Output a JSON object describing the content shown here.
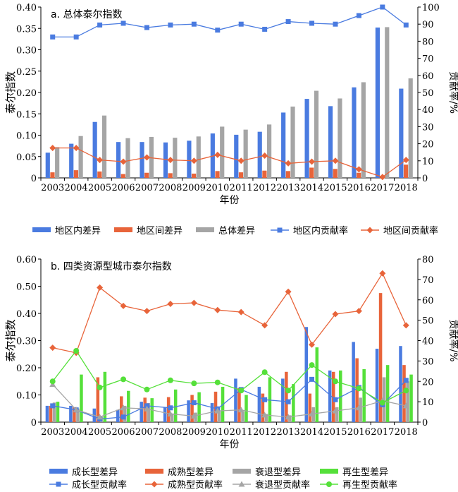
{
  "colors": {
    "within": "#4A7BE0",
    "between": "#E8643A",
    "total": "#A5A5A5",
    "mature": "#E8643A",
    "decline": "#A5A5A5",
    "regen": "#55E03A",
    "growth": "#4A7BE0"
  },
  "chart_data": [
    {
      "type": "bar",
      "title": "a. 总体泰尔指数",
      "xlabel": "年份",
      "ylabel": "泰尔指数",
      "y2label": "贡献率/%",
      "ylim": [
        0,
        0.4
      ],
      "yticks": [
        "0",
        "0.05",
        "0.10",
        "0.15",
        "0.20",
        "0.25",
        "0.30",
        "0.35",
        "0.40"
      ],
      "y2lim": [
        0,
        100
      ],
      "y2ticks": [
        "0",
        "10",
        "20",
        "30",
        "40",
        "50",
        "60",
        "70",
        "80",
        "90",
        "100"
      ],
      "categories": [
        "2003",
        "2004",
        "2005",
        "2006",
        "2007",
        "2008",
        "2009",
        "2010",
        "2011",
        "2012",
        "2013",
        "2014",
        "2015",
        "2016",
        "2017",
        "2018"
      ],
      "series": [
        {
          "name": "地区内差异",
          "kind": "bar",
          "axis": "left",
          "color": "#4A7BE0",
          "values": [
            0.059,
            0.08,
            0.131,
            0.084,
            0.084,
            0.083,
            0.087,
            0.104,
            0.101,
            0.108,
            0.153,
            0.185,
            0.168,
            0.212,
            0.352,
            0.209
          ]
        },
        {
          "name": "地区间差异",
          "kind": "bar",
          "axis": "left",
          "color": "#E8643A",
          "values": [
            0.013,
            0.018,
            0.015,
            0.009,
            0.012,
            0.011,
            0.01,
            0.016,
            0.013,
            0.017,
            0.016,
            0.024,
            0.021,
            0.012,
            0.002,
            0.031
          ]
        },
        {
          "name": "总体差异",
          "kind": "bar",
          "axis": "left",
          "color": "#A5A5A5",
          "values": [
            0.072,
            0.098,
            0.146,
            0.093,
            0.096,
            0.094,
            0.097,
            0.12,
            0.113,
            0.125,
            0.167,
            0.204,
            0.186,
            0.224,
            0.353,
            0.233
          ]
        },
        {
          "name": "地区内贡献率",
          "kind": "line",
          "axis": "right",
          "color": "#4A7BE0",
          "marker": "square",
          "values": [
            82.5,
            82.5,
            89.5,
            90.5,
            88,
            89.5,
            90,
            86.5,
            90,
            87,
            91.5,
            90.5,
            90,
            95,
            100,
            89.5
          ]
        },
        {
          "name": "地区间贡献率",
          "kind": "line",
          "axis": "right",
          "color": "#E8643A",
          "marker": "diamond",
          "values": [
            17.5,
            17.5,
            10.5,
            9.5,
            12,
            10.5,
            10,
            13.5,
            10,
            13,
            8.5,
            9.5,
            10,
            5,
            0.5,
            10.5
          ]
        }
      ]
    },
    {
      "type": "bar",
      "title": "b. 四类资源型城市泰尔指数",
      "xlabel": "年份",
      "ylabel": "泰尔指数",
      "y2label": "贡献率/%",
      "ylim": [
        0,
        0.6
      ],
      "yticks": [
        "0",
        "0.10",
        "0.20",
        "0.30",
        "0.40",
        "0.50",
        "0.60"
      ],
      "y2lim": [
        0,
        80
      ],
      "y2ticks": [
        "0",
        "10",
        "20",
        "30",
        "40",
        "50",
        "60",
        "70",
        "80"
      ],
      "categories": [
        "2003",
        "2004",
        "2005",
        "2006",
        "2007",
        "2008",
        "2009",
        "2010",
        "2011",
        "2012",
        "2013",
        "2014",
        "2015",
        "2016",
        "2017",
        "2018"
      ],
      "series": [
        {
          "name": "成长型差异",
          "kind": "bar",
          "axis": "left",
          "color": "#4A7BE0",
          "values": [
            0.06,
            0.06,
            0.05,
            0.045,
            0.075,
            0.055,
            0.08,
            0.07,
            0.16,
            0.13,
            0.16,
            0.35,
            0.19,
            0.295,
            0.27,
            0.28
          ]
        },
        {
          "name": "成熟型差异",
          "kind": "bar",
          "axis": "left",
          "color": "#E8643A",
          "values": [
            0.06,
            0.055,
            0.165,
            0.095,
            0.09,
            0.092,
            0.1,
            0.112,
            0.125,
            0.105,
            0.185,
            0.105,
            0.185,
            0.235,
            0.475,
            0.21
          ]
        },
        {
          "name": "衰退型差异",
          "kind": "bar",
          "axis": "left",
          "color": "#A5A5A5",
          "values": [
            0.072,
            0.05,
            0.02,
            0.06,
            0.07,
            0.032,
            0.035,
            0.04,
            0.04,
            0.03,
            0.025,
            0.055,
            0.055,
            0.09,
            0.165,
            0.15
          ]
        },
        {
          "name": "再生型差异",
          "kind": "bar",
          "axis": "left",
          "color": "#55E03A",
          "values": [
            0.075,
            0.175,
            0.185,
            0.115,
            0.088,
            0.12,
            0.11,
            0.13,
            0.1,
            0.165,
            0.14,
            0.275,
            0.19,
            0.195,
            0.21,
            0.175
          ]
        },
        {
          "name": "成长型贡献率",
          "kind": "line",
          "axis": "right",
          "color": "#4A7BE0",
          "marker": "square",
          "values": [
            8,
            6,
            1.5,
            2.5,
            8,
            7,
            9.5,
            6.5,
            16,
            11,
            10,
            21,
            11,
            17,
            8.5,
            20.5
          ]
        },
        {
          "name": "成熟型贡献率",
          "kind": "line",
          "axis": "right",
          "color": "#E8643A",
          "marker": "diamond",
          "values": [
            36.5,
            34,
            66,
            57,
            54.5,
            58,
            58.5,
            55,
            54,
            47.5,
            64,
            38,
            53,
            54.5,
            73,
            47.5
          ]
        },
        {
          "name": "衰退型贡献率",
          "kind": "line",
          "axis": "right",
          "color": "#A5A5A5",
          "marker": "triangle",
          "values": [
            18.5,
            6,
            2.5,
            7,
            6.5,
            4,
            3,
            5.5,
            6,
            3.5,
            2.5,
            4,
            5.5,
            7,
            10.5,
            8
          ]
        },
        {
          "name": "再生型贡献率",
          "kind": "line",
          "axis": "right",
          "color": "#55E03A",
          "marker": "circle",
          "values": [
            20,
            35,
            17,
            21,
            16,
            20.5,
            19,
            19.5,
            15.5,
            24.5,
            15.5,
            28,
            20,
            16.5,
            9.5,
            15.5
          ]
        }
      ]
    }
  ]
}
